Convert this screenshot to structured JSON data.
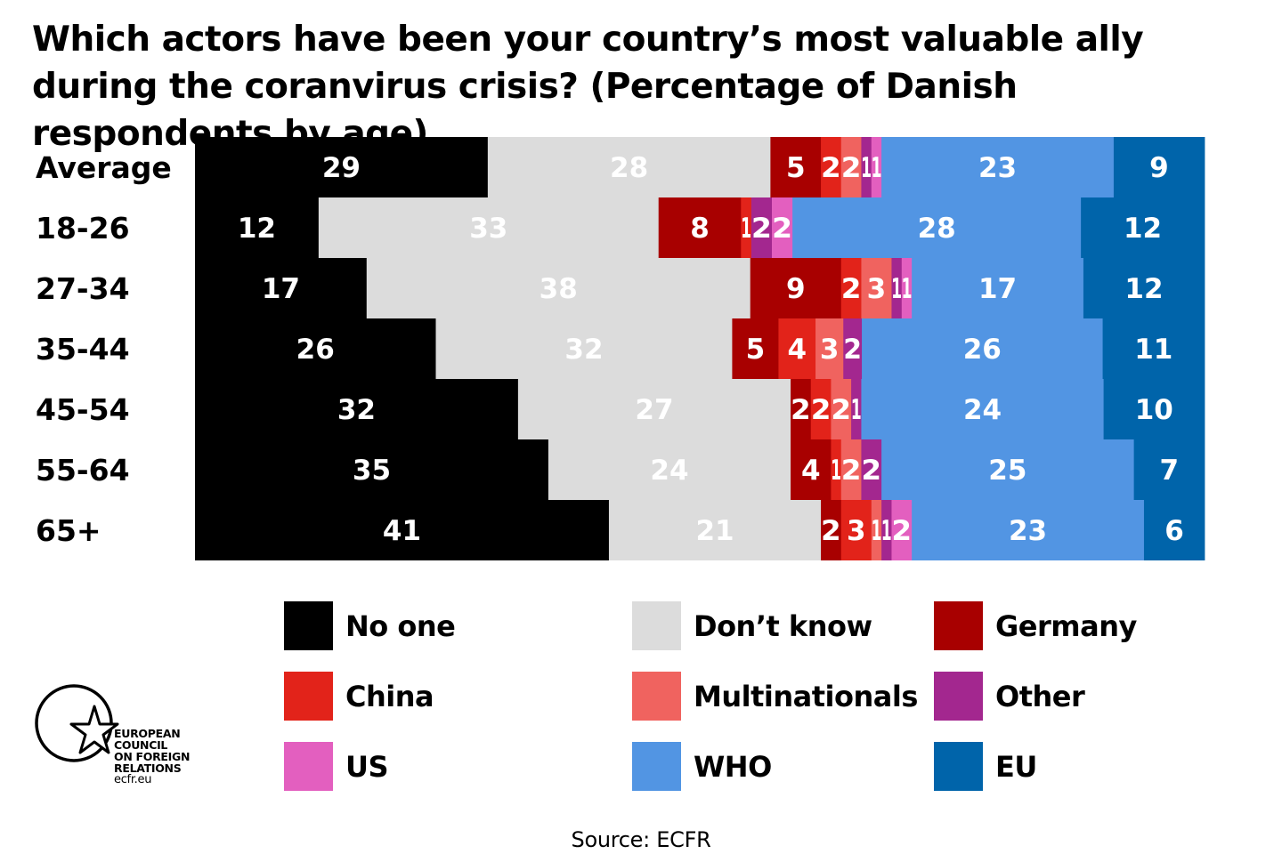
{
  "chart_data": {
    "type": "bar",
    "orientation": "horizontal",
    "stacked": true,
    "normalized": true,
    "title": "Which actors have been your country’s most valuable ally during the coranvirus crisis? (Percentage of Danish respondents by age)",
    "categories": [
      "Average",
      "18-26",
      "27-34",
      "35-44",
      "45-54",
      "55-64",
      "65+"
    ],
    "series": [
      {
        "name": "No one",
        "color": "#000000",
        "label_color": "#ffffff",
        "values": [
          29,
          12,
          17,
          26,
          32,
          35,
          41
        ]
      },
      {
        "name": "Don’t know",
        "color": "#dcdcdc",
        "label_color": "#ffffff",
        "values": [
          28,
          33,
          38,
          32,
          27,
          24,
          21
        ]
      },
      {
        "name": "Germany",
        "color": "#a80000",
        "label_color": "#ffffff",
        "values": [
          5,
          8,
          9,
          5,
          2,
          4,
          2
        ]
      },
      {
        "name": "China",
        "color": "#e2231a",
        "label_color": "#ffffff",
        "values": [
          2,
          1,
          2,
          4,
          2,
          1,
          3
        ]
      },
      {
        "name": "Multinationals",
        "color": "#f0635f",
        "label_color": "#ffffff",
        "values": [
          2,
          0,
          3,
          3,
          2,
          2,
          1
        ]
      },
      {
        "name": "Other",
        "color": "#a3278f",
        "label_color": "#ffffff",
        "values": [
          1,
          2,
          1,
          2,
          1,
          2,
          1
        ]
      },
      {
        "name": "US",
        "color": "#e35fbf",
        "label_color": "#ffffff",
        "values": [
          1,
          2,
          1,
          0,
          0,
          0,
          2
        ]
      },
      {
        "name": "WHO",
        "color": "#5295e3",
        "label_color": "#ffffff",
        "values": [
          23,
          28,
          17,
          26,
          24,
          25,
          23
        ]
      },
      {
        "name": "EU",
        "color": "#0064aa",
        "label_color": "#ffffff",
        "values": [
          9,
          12,
          12,
          11,
          10,
          7,
          6
        ]
      }
    ],
    "legend": [
      "No one",
      "Don’t know",
      "Germany",
      "China",
      "Multinationals",
      "Other",
      "US",
      "WHO",
      "EU"
    ],
    "legend_position": "bottom",
    "source": "Source: ECFR"
  },
  "logo": {
    "lines": [
      "EUROPEAN",
      "COUNCIL",
      "ON FOREIGN",
      "RELATIONS"
    ],
    "url": "ecfr.eu"
  }
}
